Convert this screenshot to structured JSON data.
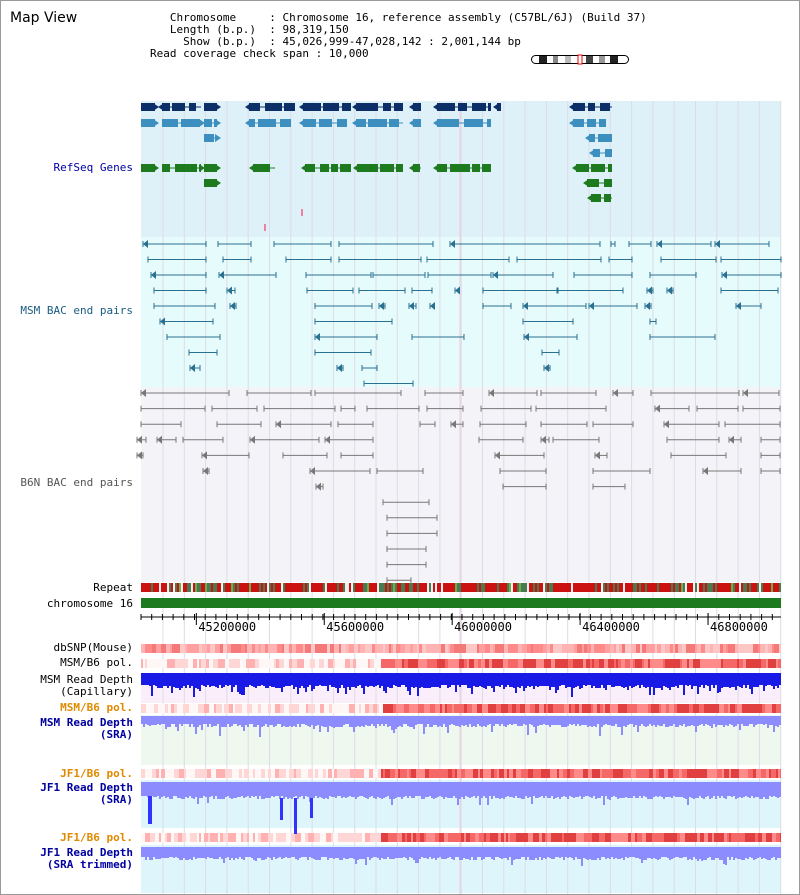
{
  "view_title": "Map View",
  "info": {
    "chromosome_key": "Chromosome",
    "chromosome_val": "Chromosome 16, reference assembly (C57BL/6J) (Build 37)",
    "length_key": "Length (b.p.)",
    "length_val": "98,319,150",
    "show_key": "Show (b.p.)",
    "show_val": "45,026,999-47,028,142 : 2,001,144 bp",
    "coverage_key": "Read coverage check span",
    "coverage_val": "10,000"
  },
  "tracks": {
    "refseq": "RefSeq Genes",
    "msm_bac": "MSM BAC end pairs",
    "b6n_bac": "B6N BAC end pairs",
    "repeat": "Repeat",
    "chromosome": "chromosome 16",
    "dbsnp": "dbSNP(Mouse)",
    "msm_b6_pol_1": "MSM/B6 pol.",
    "msm_depth_cap_1": "MSM Read Depth",
    "msm_depth_cap_2": "(Capillary)",
    "msm_b6_pol_2": "MSM/B6 pol.",
    "msm_depth_sra_1": "MSM Read Depth",
    "msm_depth_sra_2": "(SRA)",
    "jf1_b6_pol_1": "JF1/B6 pol.",
    "jf1_depth_sra_1": "JF1 Read Depth",
    "jf1_depth_sra_2": "(SRA)",
    "jf1_b6_pol_2": "JF1/B6 pol.",
    "jf1_depth_trim_1": "JF1 Read Depth",
    "jf1_depth_trim_2": "(SRA trimmed)"
  },
  "axis": {
    "ticks": [
      "45200000",
      "45600000",
      "46000000",
      "46400000",
      "46800000"
    ],
    "range": [
      45026999,
      47028142
    ]
  },
  "colors": {
    "refseq_dark": "#0b2f66",
    "refseq_mid": "#3d8fbf",
    "refseq_green": "#1e7a1e",
    "msm_bac": "#2a7090",
    "b6n_bac": "#777777",
    "pol_orange": "#e08a00",
    "depth_blue": "#1a1ae6",
    "depth_light": "#8c8cff",
    "label_blue": "#0000a0"
  }
}
